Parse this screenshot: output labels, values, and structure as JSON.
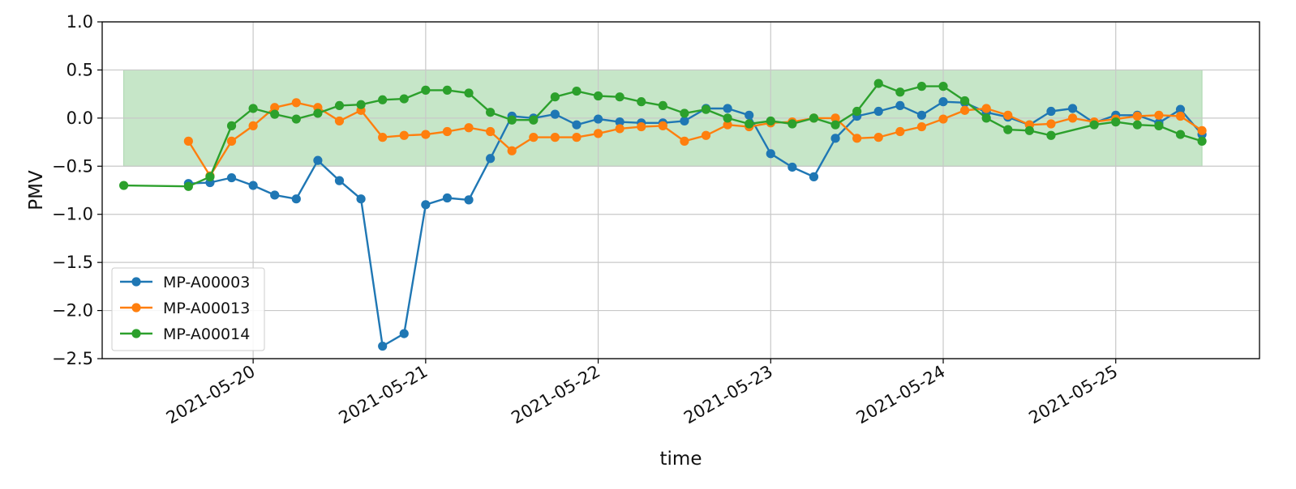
{
  "chart_data": {
    "type": "line",
    "xlabel": "time",
    "ylabel": "PMV",
    "x_ticks": [
      "2021-05-20",
      "2021-05-21",
      "2021-05-22",
      "2021-05-23",
      "2021-05-24",
      "2021-05-25"
    ],
    "y_ticks": [
      "1.0",
      "0.5",
      "0.0",
      "−0.5",
      "−1.0",
      "−1.5",
      "−2.0",
      "−2.5"
    ],
    "xlim": [
      "2021-05-19 03:00",
      "2021-05-25 20:00"
    ],
    "ylim": [
      -2.5,
      1.0
    ],
    "grid": true,
    "legend_position": "lower-left",
    "comfort_band": {
      "ymin": -0.5,
      "ymax": 0.5,
      "xmin": "2021-05-19 06:00",
      "xmax": "2021-05-25 12:00",
      "color": "#c6e6c8"
    },
    "series": [
      {
        "name": "MP-A00003",
        "color": "#1f77b4",
        "points": [
          [
            "2021-05-19 15:00",
            -0.68
          ],
          [
            "2021-05-19 18:00",
            -0.67
          ],
          [
            "2021-05-19 21:00",
            -0.62
          ],
          [
            "2021-05-20 00:00",
            -0.7
          ],
          [
            "2021-05-20 03:00",
            -0.8
          ],
          [
            "2021-05-20 06:00",
            -0.84
          ],
          [
            "2021-05-20 09:00",
            -0.44
          ],
          [
            "2021-05-20 12:00",
            -0.65
          ],
          [
            "2021-05-20 15:00",
            -0.84
          ],
          [
            "2021-05-20 18:00",
            -2.37
          ],
          [
            "2021-05-20 21:00",
            -2.24
          ],
          [
            "2021-05-21 00:00",
            -0.9
          ],
          [
            "2021-05-21 03:00",
            -0.83
          ],
          [
            "2021-05-21 06:00",
            -0.85
          ],
          [
            "2021-05-21 09:00",
            -0.42
          ],
          [
            "2021-05-21 12:00",
            0.02
          ],
          [
            "2021-05-21 15:00",
            0.0
          ],
          [
            "2021-05-21 18:00",
            0.04
          ],
          [
            "2021-05-21 21:00",
            -0.07
          ],
          [
            "2021-05-22 00:00",
            -0.01
          ],
          [
            "2021-05-22 03:00",
            -0.04
          ],
          [
            "2021-05-22 06:00",
            -0.05
          ],
          [
            "2021-05-22 09:00",
            -0.05
          ],
          [
            "2021-05-22 12:00",
            -0.03
          ],
          [
            "2021-05-22 15:00",
            0.1
          ],
          [
            "2021-05-22 18:00",
            0.1
          ],
          [
            "2021-05-22 21:00",
            0.03
          ],
          [
            "2021-05-23 00:00",
            -0.37
          ],
          [
            "2021-05-23 03:00",
            -0.51
          ],
          [
            "2021-05-23 06:00",
            -0.61
          ],
          [
            "2021-05-23 09:00",
            -0.21
          ],
          [
            "2021-05-23 12:00",
            0.02
          ],
          [
            "2021-05-23 15:00",
            0.07
          ],
          [
            "2021-05-23 18:00",
            0.13
          ],
          [
            "2021-05-23 21:00",
            0.03
          ],
          [
            "2021-05-24 00:00",
            0.17
          ],
          [
            "2021-05-24 03:00",
            0.16
          ],
          [
            "2021-05-24 06:00",
            0.06
          ],
          [
            "2021-05-24 09:00",
            0.01
          ],
          [
            "2021-05-24 12:00",
            -0.07
          ],
          [
            "2021-05-24 15:00",
            0.07
          ],
          [
            "2021-05-24 18:00",
            0.1
          ],
          [
            "2021-05-24 21:00",
            -0.05
          ],
          [
            "2021-05-25 00:00",
            0.03
          ],
          [
            "2021-05-25 03:00",
            0.03
          ],
          [
            "2021-05-25 06:00",
            -0.05
          ],
          [
            "2021-05-25 09:00",
            0.09
          ],
          [
            "2021-05-25 12:00",
            -0.17
          ]
        ]
      },
      {
        "name": "MP-A00013",
        "color": "#ff7f0e",
        "points": [
          [
            "2021-05-19 15:00",
            -0.24
          ],
          [
            "2021-05-19 18:00",
            -0.6
          ],
          [
            "2021-05-19 21:00",
            -0.24
          ],
          [
            "2021-05-20 00:00",
            -0.08
          ],
          [
            "2021-05-20 03:00",
            0.11
          ],
          [
            "2021-05-20 06:00",
            0.16
          ],
          [
            "2021-05-20 09:00",
            0.11
          ],
          [
            "2021-05-20 12:00",
            -0.03
          ],
          [
            "2021-05-20 15:00",
            0.08
          ],
          [
            "2021-05-20 18:00",
            -0.2
          ],
          [
            "2021-05-20 21:00",
            -0.18
          ],
          [
            "2021-05-21 00:00",
            -0.17
          ],
          [
            "2021-05-21 03:00",
            -0.14
          ],
          [
            "2021-05-21 06:00",
            -0.1
          ],
          [
            "2021-05-21 09:00",
            -0.14
          ],
          [
            "2021-05-21 12:00",
            -0.34
          ],
          [
            "2021-05-21 15:00",
            -0.2
          ],
          [
            "2021-05-21 18:00",
            -0.2
          ],
          [
            "2021-05-21 21:00",
            -0.2
          ],
          [
            "2021-05-22 00:00",
            -0.16
          ],
          [
            "2021-05-22 03:00",
            -0.11
          ],
          [
            "2021-05-22 06:00",
            -0.09
          ],
          [
            "2021-05-22 09:00",
            -0.08
          ],
          [
            "2021-05-22 12:00",
            -0.24
          ],
          [
            "2021-05-22 15:00",
            -0.18
          ],
          [
            "2021-05-22 18:00",
            -0.07
          ],
          [
            "2021-05-22 21:00",
            -0.09
          ],
          [
            "2021-05-23 00:00",
            -0.05
          ],
          [
            "2021-05-23 03:00",
            -0.04
          ],
          [
            "2021-05-23 06:00",
            0.0
          ],
          [
            "2021-05-23 09:00",
            0.0
          ],
          [
            "2021-05-23 12:00",
            -0.21
          ],
          [
            "2021-05-23 15:00",
            -0.2
          ],
          [
            "2021-05-23 18:00",
            -0.14
          ],
          [
            "2021-05-23 21:00",
            -0.09
          ],
          [
            "2021-05-24 00:00",
            -0.01
          ],
          [
            "2021-05-24 03:00",
            0.08
          ],
          [
            "2021-05-24 06:00",
            0.1
          ],
          [
            "2021-05-24 09:00",
            0.03
          ],
          [
            "2021-05-24 12:00",
            -0.07
          ],
          [
            "2021-05-24 15:00",
            -0.06
          ],
          [
            "2021-05-24 18:00",
            0.0
          ],
          [
            "2021-05-24 21:00",
            -0.04
          ],
          [
            "2021-05-25 00:00",
            -0.01
          ],
          [
            "2021-05-25 03:00",
            0.02
          ],
          [
            "2021-05-25 06:00",
            0.03
          ],
          [
            "2021-05-25 09:00",
            0.02
          ],
          [
            "2021-05-25 12:00",
            -0.13
          ]
        ]
      },
      {
        "name": "MP-A00014",
        "color": "#2ca02c",
        "points": [
          [
            "2021-05-19 06:00",
            -0.7
          ],
          [
            "2021-05-19 15:00",
            -0.71
          ],
          [
            "2021-05-19 18:00",
            -0.61
          ],
          [
            "2021-05-19 21:00",
            -0.08
          ],
          [
            "2021-05-20 00:00",
            0.1
          ],
          [
            "2021-05-20 03:00",
            0.04
          ],
          [
            "2021-05-20 06:00",
            -0.01
          ],
          [
            "2021-05-20 09:00",
            0.05
          ],
          [
            "2021-05-20 12:00",
            0.13
          ],
          [
            "2021-05-20 15:00",
            0.14
          ],
          [
            "2021-05-20 18:00",
            0.19
          ],
          [
            "2021-05-20 21:00",
            0.2
          ],
          [
            "2021-05-21 00:00",
            0.29
          ],
          [
            "2021-05-21 03:00",
            0.29
          ],
          [
            "2021-05-21 06:00",
            0.26
          ],
          [
            "2021-05-21 09:00",
            0.06
          ],
          [
            "2021-05-21 12:00",
            -0.02
          ],
          [
            "2021-05-21 15:00",
            -0.02
          ],
          [
            "2021-05-21 18:00",
            0.22
          ],
          [
            "2021-05-21 21:00",
            0.28
          ],
          [
            "2021-05-22 00:00",
            0.23
          ],
          [
            "2021-05-22 03:00",
            0.22
          ],
          [
            "2021-05-22 06:00",
            0.17
          ],
          [
            "2021-05-22 09:00",
            0.13
          ],
          [
            "2021-05-22 12:00",
            0.05
          ],
          [
            "2021-05-22 15:00",
            0.09
          ],
          [
            "2021-05-22 18:00",
            0.0
          ],
          [
            "2021-05-22 21:00",
            -0.06
          ],
          [
            "2021-05-23 00:00",
            -0.03
          ],
          [
            "2021-05-23 03:00",
            -0.06
          ],
          [
            "2021-05-23 06:00",
            0.0
          ],
          [
            "2021-05-23 09:00",
            -0.07
          ],
          [
            "2021-05-23 12:00",
            0.07
          ],
          [
            "2021-05-23 15:00",
            0.36
          ],
          [
            "2021-05-23 18:00",
            0.27
          ],
          [
            "2021-05-23 21:00",
            0.33
          ],
          [
            "2021-05-24 00:00",
            0.33
          ],
          [
            "2021-05-24 03:00",
            0.18
          ],
          [
            "2021-05-24 06:00",
            0.0
          ],
          [
            "2021-05-24 09:00",
            -0.12
          ],
          [
            "2021-05-24 12:00",
            -0.13
          ],
          [
            "2021-05-24 15:00",
            -0.18
          ],
          [
            "2021-05-24 21:00",
            -0.07
          ],
          [
            "2021-05-25 00:00",
            -0.04
          ],
          [
            "2021-05-25 03:00",
            -0.07
          ],
          [
            "2021-05-25 06:00",
            -0.08
          ],
          [
            "2021-05-25 09:00",
            -0.17
          ],
          [
            "2021-05-25 12:00",
            -0.24
          ]
        ]
      }
    ]
  }
}
